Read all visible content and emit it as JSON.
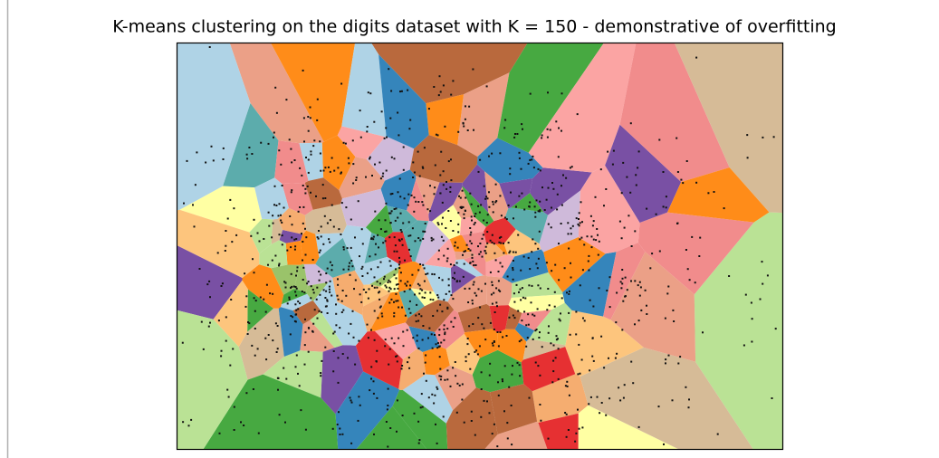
{
  "chart_data": {
    "type": "voronoi",
    "title": "K-means clustering on the digits dataset with K = 150 - demonstrative of overfitting"
  }
}
